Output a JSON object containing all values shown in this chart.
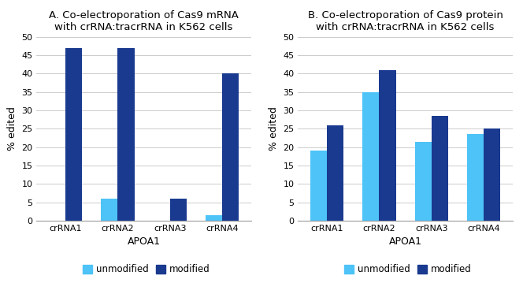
{
  "chart_A": {
    "title": "A. Co-electroporation of Cas9 mRNA\nwith crRNA:tracrRNA in K562 cells",
    "categories": [
      "crRNA1",
      "crRNA2",
      "crRNA3",
      "crRNA4"
    ],
    "unmodified": [
      0,
      6,
      0,
      1.5
    ],
    "modified": [
      47,
      47,
      6,
      40
    ],
    "ylabel": "% edited",
    "xlabel": "APOA1",
    "ylim": [
      0,
      50
    ],
    "yticks": [
      0,
      5,
      10,
      15,
      20,
      25,
      30,
      35,
      40,
      45,
      50
    ]
  },
  "chart_B": {
    "title": "B. Co-electroporation of Cas9 protein\nwith crRNA:tracrRNA in K562 cells",
    "categories": [
      "crRNA1",
      "crRNA2",
      "crRNA3",
      "crRNA4"
    ],
    "unmodified": [
      19,
      35,
      21.5,
      23.5
    ],
    "modified": [
      26,
      41,
      28.5,
      25
    ],
    "ylabel": "% edited",
    "xlabel": "APOA1",
    "ylim": [
      0,
      50
    ],
    "yticks": [
      0,
      5,
      10,
      15,
      20,
      25,
      30,
      35,
      40,
      45,
      50
    ]
  },
  "color_unmodified": "#4DC3F7",
  "color_modified": "#1A3A8F",
  "bar_width": 0.32,
  "legend_labels": [
    "unmodified",
    "modified"
  ],
  "background_color": "#ffffff",
  "grid_color": "#cccccc",
  "title_fontsize": 9.5,
  "axis_fontsize": 9,
  "tick_fontsize": 8,
  "legend_fontsize": 8.5
}
